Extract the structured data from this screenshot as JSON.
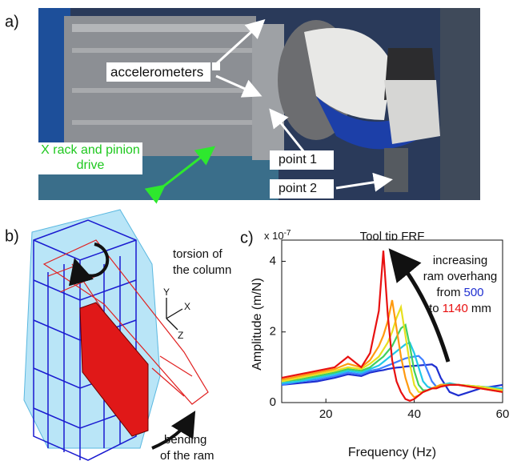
{
  "panels": {
    "a": {
      "label": "a)",
      "accelerometers": "accelerometers",
      "point1": "point 1",
      "point2": "point 2",
      "drive": [
        "X rack and pinion",
        "drive"
      ]
    },
    "b": {
      "label": "b)",
      "torsion": [
        "torsion of",
        "the column"
      ],
      "bending": [
        "bending",
        "of the ram"
      ],
      "axes": [
        "Y",
        "X",
        "Z"
      ]
    },
    "c": {
      "label": "c)"
    }
  },
  "chart_data": {
    "type": "line",
    "title": "Tool tip FRF",
    "x_label": "Frequency (Hz)",
    "y_label": "Amplitude (m/N)",
    "y_exponent": {
      "base": "x 10",
      "power": "-7"
    },
    "annotation": [
      "increasing",
      "ram overhang",
      "from",
      "500",
      "to",
      "1140",
      "mm"
    ],
    "xlim": [
      10,
      60
    ],
    "xticks": [
      20,
      40,
      60
    ],
    "ylim": [
      0,
      4.6
    ],
    "yticks": [
      0,
      2,
      4
    ],
    "x": [
      10,
      14,
      18,
      22,
      25,
      28,
      30,
      32,
      33,
      34,
      35,
      36,
      37,
      38,
      39,
      40,
      41,
      42,
      43,
      44,
      45,
      46,
      48,
      50,
      55,
      60
    ],
    "series": [
      {
        "color": "#1f2fd0",
        "values": [
          0.5,
          0.55,
          0.6,
          0.7,
          0.8,
          0.75,
          0.85,
          0.9,
          0.92,
          0.95,
          0.97,
          0.99,
          1.0,
          1.02,
          1.03,
          1.04,
          1.05,
          1.06,
          1.07,
          1.08,
          1.0,
          0.7,
          0.3,
          0.2,
          0.4,
          0.5
        ]
      },
      {
        "color": "#3f7fff",
        "values": [
          0.5,
          0.6,
          0.65,
          0.75,
          0.85,
          0.8,
          0.9,
          0.95,
          1.0,
          1.05,
          1.1,
          1.15,
          1.2,
          1.25,
          1.28,
          1.3,
          1.32,
          1.2,
          0.9,
          0.6,
          0.45,
          0.45,
          0.5,
          0.5,
          0.45,
          0.4
        ]
      },
      {
        "color": "#20c8e8",
        "values": [
          0.55,
          0.6,
          0.7,
          0.8,
          0.9,
          0.85,
          0.95,
          1.05,
          1.15,
          1.25,
          1.35,
          1.45,
          1.55,
          1.65,
          1.7,
          1.4,
          1.0,
          0.6,
          0.45,
          0.4,
          0.45,
          0.5,
          0.55,
          0.5,
          0.45,
          0.4
        ]
      },
      {
        "color": "#40d060",
        "values": [
          0.6,
          0.65,
          0.75,
          0.85,
          0.95,
          0.9,
          1.0,
          1.2,
          1.3,
          1.45,
          1.6,
          1.85,
          2.1,
          2.2,
          1.6,
          0.9,
          0.5,
          0.35,
          0.35,
          0.4,
          0.45,
          0.5,
          0.5,
          0.5,
          0.45,
          0.35
        ]
      },
      {
        "color": "#e8e020",
        "values": [
          0.6,
          0.7,
          0.8,
          0.9,
          1.0,
          0.95,
          1.1,
          1.3,
          1.5,
          1.7,
          2.0,
          2.4,
          2.7,
          1.9,
          1.1,
          0.5,
          0.3,
          0.3,
          0.35,
          0.4,
          0.45,
          0.5,
          0.5,
          0.5,
          0.45,
          0.35
        ]
      },
      {
        "color": "#ff9a10",
        "values": [
          0.65,
          0.75,
          0.85,
          0.95,
          1.1,
          1.0,
          1.2,
          1.6,
          1.9,
          2.3,
          2.9,
          2.1,
          1.3,
          0.7,
          0.3,
          0.15,
          0.2,
          0.3,
          0.35,
          0.4,
          0.45,
          0.5,
          0.5,
          0.5,
          0.4,
          0.3
        ]
      },
      {
        "color": "#e81010",
        "values": [
          0.7,
          0.8,
          0.9,
          1.0,
          1.3,
          1.0,
          1.4,
          2.6,
          4.3,
          2.5,
          1.2,
          0.6,
          0.3,
          0.1,
          0.05,
          0.1,
          0.2,
          0.3,
          0.35,
          0.4,
          0.4,
          0.45,
          0.5,
          0.5,
          0.4,
          0.3
        ]
      }
    ]
  }
}
